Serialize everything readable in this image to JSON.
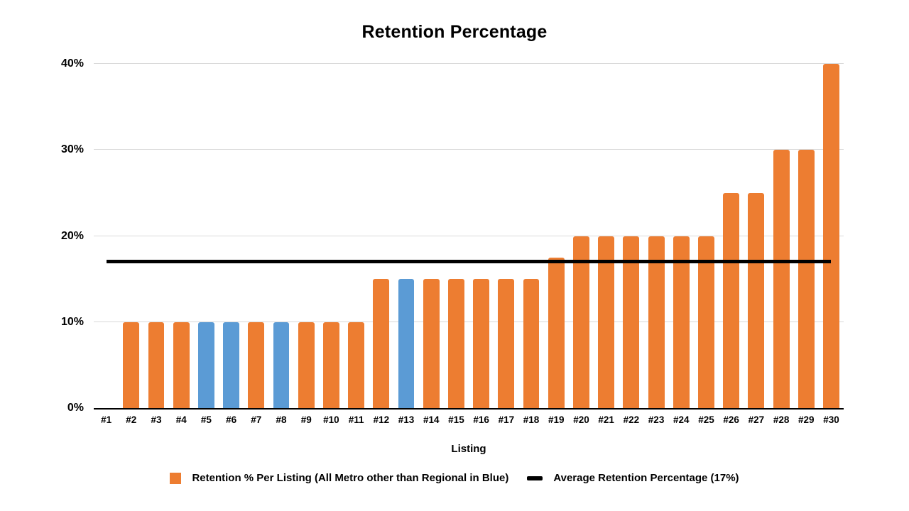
{
  "title": "Retention Percentage",
  "chart_data": {
    "type": "bar",
    "title": "Retention Percentage",
    "xlabel": "Listing",
    "ylabel": "",
    "ylim": [
      0,
      40
    ],
    "grid": true,
    "gridline_color": "#d9d9d9",
    "axis_color": "#000000",
    "legend_position": "bottom",
    "yticks": [
      {
        "value": 0,
        "label": "0%"
      },
      {
        "value": 10,
        "label": "10%"
      },
      {
        "value": 20,
        "label": "20%"
      },
      {
        "value": 30,
        "label": "30%"
      },
      {
        "value": 40,
        "label": "40%"
      }
    ],
    "categories": [
      "#1",
      "#2",
      "#3",
      "#4",
      "#5",
      "#6",
      "#7",
      "#8",
      "#9",
      "#10",
      "#11",
      "#12",
      "#13",
      "#14",
      "#15",
      "#16",
      "#17",
      "#18",
      "#19",
      "#20",
      "#21",
      "#22",
      "#23",
      "#24",
      "#25",
      "#26",
      "#27",
      "#28",
      "#29",
      "#30"
    ],
    "series": [
      {
        "name": "Retention % Per Listing (All Metro other than Regional in Blue)",
        "type": "bar",
        "values": [
          0,
          10,
          10,
          10,
          10,
          10,
          10,
          10,
          10,
          10,
          10,
          15,
          15,
          15,
          15,
          15,
          15,
          15,
          17.5,
          20,
          20,
          20,
          20,
          20,
          20,
          25,
          25,
          30,
          30,
          40
        ],
        "metro_color": "#ED7D31",
        "regional_color": "#5B9BD5",
        "regional_listings": [
          "#5",
          "#6",
          "#8",
          "#13"
        ]
      },
      {
        "name": "Average Retention Percentage (17%)",
        "type": "line",
        "value": 17,
        "color": "#000000",
        "spans_categories": [
          "#1",
          "#30"
        ]
      }
    ]
  },
  "legend": {
    "items": [
      {
        "label": "Retention % Per Listing (All Metro other than Regional in Blue)",
        "swatch": "square",
        "color": "#ED7D31"
      },
      {
        "label": "Average Retention Percentage (17%)",
        "swatch": "dash",
        "color": "#000000"
      }
    ]
  }
}
